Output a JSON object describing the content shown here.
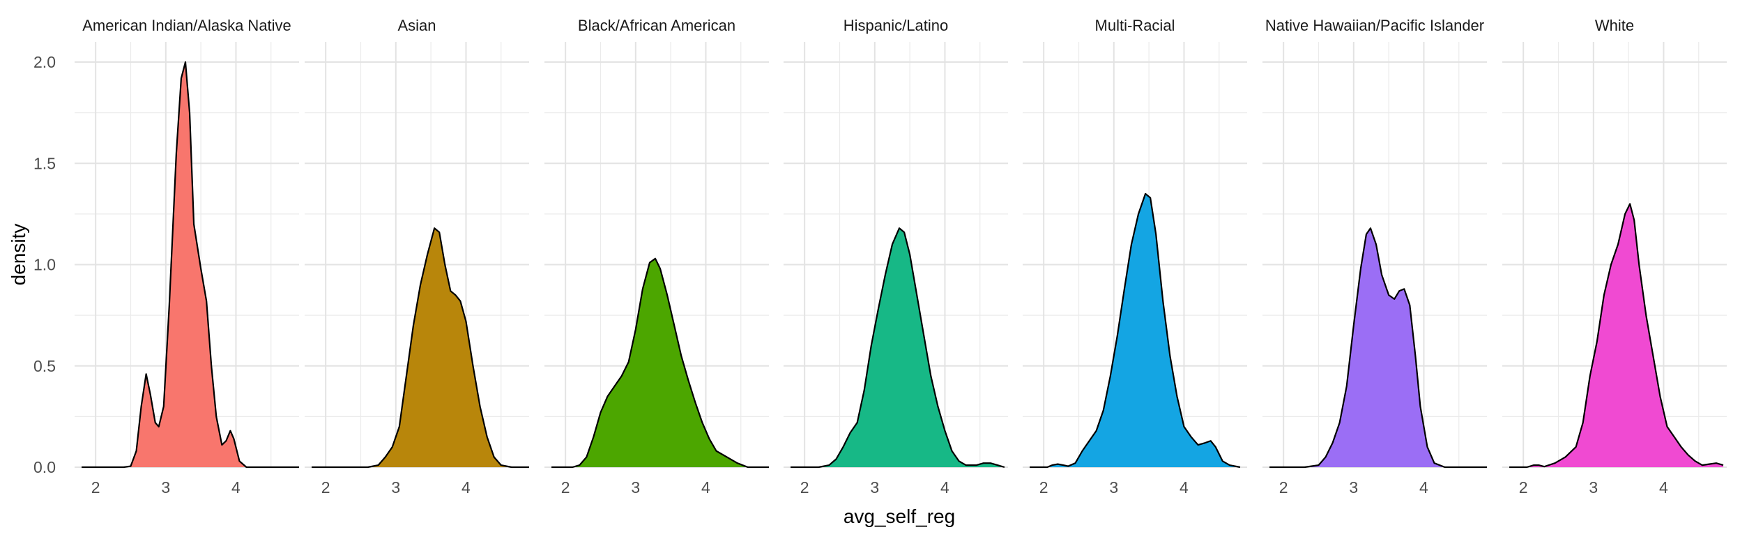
{
  "chart_data": {
    "type": "area",
    "title": "",
    "xlabel": "avg_self_reg",
    "ylabel": "density",
    "xlim": [
      1.7,
      4.9
    ],
    "ylim": [
      0,
      2.1
    ],
    "x_ticks": [
      2,
      3,
      4
    ],
    "y_ticks": [
      0.0,
      0.5,
      1.0,
      1.5,
      2.0
    ],
    "y_tick_labels": [
      "0.0",
      "0.5",
      "1.0",
      "1.5",
      "2.0"
    ],
    "grid": true,
    "legend": "none",
    "panels": [
      {
        "name": "American Indian/Alaska Native",
        "fill": "#F8766D",
        "points": [
          [
            1.8,
            0
          ],
          [
            2.4,
            0
          ],
          [
            2.5,
            0.005
          ],
          [
            2.58,
            0.08
          ],
          [
            2.65,
            0.3
          ],
          [
            2.72,
            0.46
          ],
          [
            2.78,
            0.36
          ],
          [
            2.85,
            0.22
          ],
          [
            2.9,
            0.2
          ],
          [
            2.97,
            0.3
          ],
          [
            3.05,
            0.8
          ],
          [
            3.15,
            1.55
          ],
          [
            3.22,
            1.92
          ],
          [
            3.28,
            2.0
          ],
          [
            3.34,
            1.75
          ],
          [
            3.4,
            1.2
          ],
          [
            3.5,
            0.98
          ],
          [
            3.58,
            0.82
          ],
          [
            3.65,
            0.5
          ],
          [
            3.72,
            0.25
          ],
          [
            3.8,
            0.11
          ],
          [
            3.86,
            0.13
          ],
          [
            3.92,
            0.18
          ],
          [
            3.97,
            0.14
          ],
          [
            4.05,
            0.03
          ],
          [
            4.15,
            0
          ],
          [
            4.9,
            0
          ]
        ]
      },
      {
        "name": "Asian",
        "fill": "#B8860B",
        "points": [
          [
            1.8,
            0
          ],
          [
            2.6,
            0
          ],
          [
            2.75,
            0.01
          ],
          [
            2.85,
            0.05
          ],
          [
            2.95,
            0.1
          ],
          [
            3.05,
            0.2
          ],
          [
            3.15,
            0.45
          ],
          [
            3.25,
            0.7
          ],
          [
            3.35,
            0.9
          ],
          [
            3.45,
            1.05
          ],
          [
            3.55,
            1.18
          ],
          [
            3.62,
            1.16
          ],
          [
            3.7,
            1.0
          ],
          [
            3.78,
            0.87
          ],
          [
            3.85,
            0.85
          ],
          [
            3.92,
            0.82
          ],
          [
            4.0,
            0.72
          ],
          [
            4.1,
            0.5
          ],
          [
            4.2,
            0.3
          ],
          [
            4.3,
            0.15
          ],
          [
            4.4,
            0.05
          ],
          [
            4.5,
            0.01
          ],
          [
            4.65,
            0
          ],
          [
            4.9,
            0
          ]
        ]
      },
      {
        "name": "Black/African American",
        "fill": "#4CA600",
        "points": [
          [
            1.8,
            0
          ],
          [
            2.1,
            0
          ],
          [
            2.2,
            0.01
          ],
          [
            2.3,
            0.05
          ],
          [
            2.4,
            0.15
          ],
          [
            2.5,
            0.27
          ],
          [
            2.6,
            0.35
          ],
          [
            2.7,
            0.4
          ],
          [
            2.8,
            0.45
          ],
          [
            2.9,
            0.52
          ],
          [
            3.0,
            0.68
          ],
          [
            3.1,
            0.88
          ],
          [
            3.2,
            1.01
          ],
          [
            3.28,
            1.03
          ],
          [
            3.35,
            0.98
          ],
          [
            3.45,
            0.85
          ],
          [
            3.55,
            0.7
          ],
          [
            3.65,
            0.55
          ],
          [
            3.75,
            0.43
          ],
          [
            3.85,
            0.32
          ],
          [
            3.95,
            0.22
          ],
          [
            4.05,
            0.14
          ],
          [
            4.15,
            0.08
          ],
          [
            4.3,
            0.05
          ],
          [
            4.45,
            0.02
          ],
          [
            4.6,
            0
          ],
          [
            4.9,
            0
          ]
        ]
      },
      {
        "name": "Hispanic/Latino",
        "fill": "#17B886",
        "points": [
          [
            1.8,
            0
          ],
          [
            2.2,
            0
          ],
          [
            2.35,
            0.01
          ],
          [
            2.45,
            0.04
          ],
          [
            2.55,
            0.1
          ],
          [
            2.65,
            0.17
          ],
          [
            2.75,
            0.22
          ],
          [
            2.85,
            0.38
          ],
          [
            2.95,
            0.6
          ],
          [
            3.05,
            0.78
          ],
          [
            3.15,
            0.95
          ],
          [
            3.25,
            1.1
          ],
          [
            3.35,
            1.18
          ],
          [
            3.42,
            1.16
          ],
          [
            3.5,
            1.05
          ],
          [
            3.6,
            0.85
          ],
          [
            3.7,
            0.65
          ],
          [
            3.8,
            0.45
          ],
          [
            3.9,
            0.3
          ],
          [
            4.0,
            0.18
          ],
          [
            4.1,
            0.08
          ],
          [
            4.2,
            0.03
          ],
          [
            4.3,
            0.01
          ],
          [
            4.45,
            0.01
          ],
          [
            4.55,
            0.02
          ],
          [
            4.65,
            0.02
          ],
          [
            4.75,
            0.01
          ],
          [
            4.85,
            0
          ]
        ]
      },
      {
        "name": "Multi-Racial",
        "fill": "#14A5E3",
        "points": [
          [
            1.8,
            0
          ],
          [
            2.05,
            0
          ],
          [
            2.12,
            0.01
          ],
          [
            2.2,
            0.015
          ],
          [
            2.28,
            0.01
          ],
          [
            2.35,
            0.005
          ],
          [
            2.45,
            0.02
          ],
          [
            2.55,
            0.08
          ],
          [
            2.65,
            0.13
          ],
          [
            2.75,
            0.18
          ],
          [
            2.85,
            0.28
          ],
          [
            2.95,
            0.45
          ],
          [
            3.05,
            0.65
          ],
          [
            3.15,
            0.88
          ],
          [
            3.25,
            1.1
          ],
          [
            3.35,
            1.25
          ],
          [
            3.45,
            1.35
          ],
          [
            3.52,
            1.33
          ],
          [
            3.6,
            1.15
          ],
          [
            3.7,
            0.82
          ],
          [
            3.8,
            0.55
          ],
          [
            3.9,
            0.35
          ],
          [
            4.0,
            0.2
          ],
          [
            4.1,
            0.15
          ],
          [
            4.2,
            0.11
          ],
          [
            4.3,
            0.12
          ],
          [
            4.38,
            0.13
          ],
          [
            4.45,
            0.1
          ],
          [
            4.55,
            0.03
          ],
          [
            4.65,
            0.01
          ],
          [
            4.8,
            0
          ]
        ]
      },
      {
        "name": "Native Hawaiian/Pacific Islander",
        "fill": "#9B6EF5",
        "points": [
          [
            1.8,
            0
          ],
          [
            2.3,
            0
          ],
          [
            2.5,
            0.01
          ],
          [
            2.6,
            0.05
          ],
          [
            2.7,
            0.12
          ],
          [
            2.8,
            0.22
          ],
          [
            2.9,
            0.4
          ],
          [
            3.0,
            0.7
          ],
          [
            3.1,
            0.98
          ],
          [
            3.18,
            1.15
          ],
          [
            3.24,
            1.18
          ],
          [
            3.32,
            1.1
          ],
          [
            3.4,
            0.95
          ],
          [
            3.5,
            0.85
          ],
          [
            3.58,
            0.83
          ],
          [
            3.65,
            0.87
          ],
          [
            3.72,
            0.88
          ],
          [
            3.8,
            0.8
          ],
          [
            3.88,
            0.55
          ],
          [
            3.95,
            0.3
          ],
          [
            4.05,
            0.1
          ],
          [
            4.15,
            0.02
          ],
          [
            4.3,
            0
          ],
          [
            4.9,
            0
          ]
        ]
      },
      {
        "name": "White",
        "fill": "#F04AD2",
        "points": [
          [
            1.8,
            0
          ],
          [
            2.05,
            0
          ],
          [
            2.15,
            0.01
          ],
          [
            2.22,
            0.01
          ],
          [
            2.3,
            0.003
          ],
          [
            2.45,
            0.02
          ],
          [
            2.6,
            0.05
          ],
          [
            2.75,
            0.1
          ],
          [
            2.85,
            0.22
          ],
          [
            2.95,
            0.45
          ],
          [
            3.05,
            0.62
          ],
          [
            3.15,
            0.85
          ],
          [
            3.25,
            1.0
          ],
          [
            3.35,
            1.1
          ],
          [
            3.45,
            1.25
          ],
          [
            3.52,
            1.3
          ],
          [
            3.58,
            1.22
          ],
          [
            3.65,
            1.0
          ],
          [
            3.75,
            0.75
          ],
          [
            3.85,
            0.55
          ],
          [
            3.95,
            0.35
          ],
          [
            4.05,
            0.2
          ],
          [
            4.15,
            0.15
          ],
          [
            4.25,
            0.1
          ],
          [
            4.35,
            0.06
          ],
          [
            4.45,
            0.03
          ],
          [
            4.55,
            0.01
          ],
          [
            4.65,
            0.015
          ],
          [
            4.75,
            0.02
          ],
          [
            4.85,
            0.01
          ]
        ]
      }
    ]
  }
}
